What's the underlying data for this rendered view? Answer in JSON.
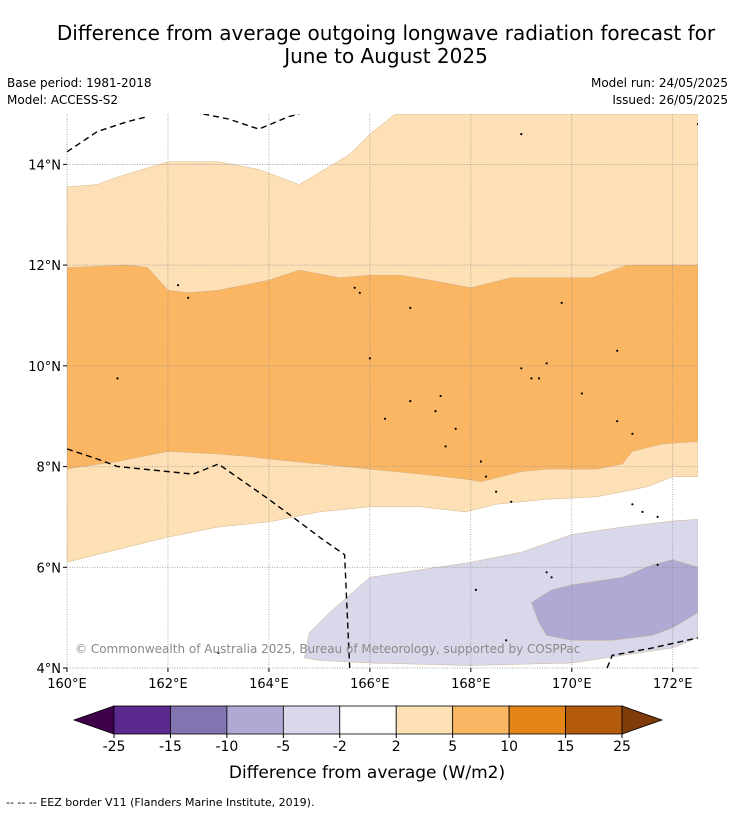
{
  "title": {
    "line1": "Difference from average outgoing longwave radiation forecast for",
    "line2": "June to August 2025"
  },
  "meta": {
    "base_period": "Base period: 1981-2018",
    "model": "Model: ACCESS-S2",
    "model_run": "Model run: 24/05/2025",
    "issued": "Issued: 26/05/2025"
  },
  "map": {
    "lon_range": [
      160,
      172.5
    ],
    "lat_range": [
      4,
      15
    ],
    "lon_ticks": [
      {
        "value": 160,
        "label": "160°E"
      },
      {
        "value": 162,
        "label": "162°E"
      },
      {
        "value": 164,
        "label": "164°E"
      },
      {
        "value": 166,
        "label": "166°E"
      },
      {
        "value": 168,
        "label": "168°E"
      },
      {
        "value": 170,
        "label": "170°E"
      },
      {
        "value": 172,
        "label": "172°E"
      }
    ],
    "lat_ticks": [
      {
        "value": 4,
        "label": "4°N"
      },
      {
        "value": 6,
        "label": "6°N"
      },
      {
        "value": 8,
        "label": "8°N"
      },
      {
        "value": 10,
        "label": "10°N"
      },
      {
        "value": 12,
        "label": "12°N"
      },
      {
        "value": 14,
        "label": "14°N"
      }
    ],
    "gridlines": true,
    "copyright": "© Commonwealth of Australia 2025, Bureau of Meteorology, supported by COSPPac",
    "regions": [
      {
        "category": "2 to 5",
        "color": "#fde0b5",
        "lonlat": [
          [
            160,
            13.55
          ],
          [
            160.6,
            13.6
          ],
          [
            161,
            13.75
          ],
          [
            162,
            14.05
          ],
          [
            163,
            14.05
          ],
          [
            163.8,
            13.9
          ],
          [
            164.6,
            13.6
          ],
          [
            165.6,
            14.2
          ],
          [
            166,
            14.6
          ],
          [
            166.5,
            15
          ],
          [
            172.5,
            15
          ],
          [
            172.5,
            7.8
          ],
          [
            172,
            7.8
          ],
          [
            171.5,
            7.6
          ],
          [
            170.5,
            7.4
          ],
          [
            169.5,
            7.35
          ],
          [
            168.5,
            7.25
          ],
          [
            167.9,
            7.1
          ],
          [
            167,
            7.2
          ],
          [
            166,
            7.2
          ],
          [
            165,
            7.1
          ],
          [
            164.5,
            7.0
          ],
          [
            164,
            6.9
          ],
          [
            163,
            6.8
          ],
          [
            162,
            6.6
          ],
          [
            161,
            6.35
          ],
          [
            160,
            6.1
          ]
        ]
      },
      {
        "category": "5 to 10",
        "color": "#fbb664",
        "lonlat": [
          [
            160,
            11.95
          ],
          [
            161.2,
            12.0
          ],
          [
            161.6,
            11.95
          ],
          [
            162,
            11.5
          ],
          [
            162.4,
            11.45
          ],
          [
            163,
            11.5
          ],
          [
            164,
            11.7
          ],
          [
            164.6,
            11.9
          ],
          [
            165.4,
            11.75
          ],
          [
            166,
            11.8
          ],
          [
            166.6,
            11.8
          ],
          [
            167.2,
            11.7
          ],
          [
            168,
            11.55
          ],
          [
            168.8,
            11.75
          ],
          [
            169.5,
            11.75
          ],
          [
            170.4,
            11.75
          ],
          [
            171.1,
            12.0
          ],
          [
            172.5,
            12.0
          ],
          [
            172.5,
            8.5
          ],
          [
            171.8,
            8.45
          ],
          [
            171.2,
            8.3
          ],
          [
            171.0,
            8.05
          ],
          [
            170.5,
            7.95
          ],
          [
            169.5,
            7.95
          ],
          [
            169.0,
            7.9
          ],
          [
            168.2,
            7.7
          ],
          [
            167.9,
            7.75
          ],
          [
            167,
            7.85
          ],
          [
            166,
            7.95
          ],
          [
            165.5,
            8.0
          ],
          [
            165,
            8.05
          ],
          [
            164,
            8.15
          ],
          [
            163.6,
            8.2
          ],
          [
            163,
            8.25
          ],
          [
            162,
            8.3
          ],
          [
            161,
            8.1
          ],
          [
            160.3,
            8.0
          ],
          [
            160,
            7.95
          ]
        ]
      },
      {
        "category": "-5 to -2",
        "color": "#d8d8ea",
        "lonlat": [
          [
            164.7,
            4.2
          ],
          [
            164.8,
            4.7
          ],
          [
            165.2,
            5.1
          ],
          [
            166,
            5.8
          ],
          [
            167,
            5.95
          ],
          [
            168,
            6.1
          ],
          [
            169,
            6.3
          ],
          [
            170,
            6.65
          ],
          [
            171,
            6.8
          ],
          [
            172,
            6.92
          ],
          [
            172.5,
            6.95
          ],
          [
            172.5,
            4.6
          ],
          [
            172,
            4.4
          ],
          [
            171,
            4.25
          ],
          [
            170,
            4.1
          ],
          [
            168,
            4.05
          ],
          [
            166,
            4.1
          ],
          [
            165,
            4.15
          ]
        ]
      },
      {
        "category": "-10 to -5",
        "color": "#b0a9d3",
        "lonlat": [
          [
            169.2,
            5.3
          ],
          [
            169.6,
            5.55
          ],
          [
            170,
            5.65
          ],
          [
            171,
            5.8
          ],
          [
            171.6,
            6.05
          ],
          [
            172,
            6.15
          ],
          [
            172.5,
            6.0
          ],
          [
            172.5,
            5.1
          ],
          [
            172,
            4.8
          ],
          [
            171.6,
            4.65
          ],
          [
            170.8,
            4.55
          ],
          [
            170,
            4.55
          ],
          [
            169.5,
            4.65
          ],
          [
            169.35,
            4.9
          ]
        ]
      }
    ],
    "eez_lines": [
      [
        [
          160,
          8.35
        ],
        [
          160.6,
          8.15
        ],
        [
          161.0,
          8.0
        ],
        [
          162.5,
          7.85
        ],
        [
          163.0,
          8.05
        ],
        [
          163.5,
          7.7
        ],
        [
          164.0,
          7.35
        ],
        [
          164.6,
          6.9
        ],
        [
          165.0,
          6.6
        ],
        [
          165.5,
          6.25
        ],
        [
          165.6,
          4.0
        ]
      ],
      [
        [
          160,
          14.25
        ],
        [
          160.6,
          14.65
        ],
        [
          161.2,
          14.85
        ],
        [
          161.6,
          14.95
        ]
      ],
      [
        [
          162.7,
          15.0
        ],
        [
          163.2,
          14.9
        ],
        [
          163.8,
          14.7
        ],
        [
          164.4,
          14.95
        ],
        [
          164.6,
          15.0
        ]
      ],
      [
        [
          170.7,
          4.0
        ],
        [
          170.8,
          4.25
        ],
        [
          171.6,
          4.4
        ],
        [
          172.5,
          4.6
        ]
      ]
    ],
    "islands": [
      [
        161,
        9.75
      ],
      [
        162.2,
        11.6
      ],
      [
        162.4,
        11.35
      ],
      [
        163,
        4.3
      ],
      [
        165.7,
        11.55
      ],
      [
        165.8,
        11.45
      ],
      [
        166,
        10.15
      ],
      [
        166.3,
        8.95
      ],
      [
        166.8,
        11.15
      ],
      [
        166.8,
        9.3
      ],
      [
        167.3,
        9.1
      ],
      [
        167.4,
        9.4
      ],
      [
        167.7,
        8.75
      ],
      [
        167.5,
        8.4
      ],
      [
        168.2,
        8.1
      ],
      [
        168.3,
        7.8
      ],
      [
        168.5,
        7.5
      ],
      [
        168.8,
        7.3
      ],
      [
        169.0,
        14.6
      ],
      [
        169.0,
        9.95
      ],
      [
        169.2,
        9.75
      ],
      [
        169.35,
        9.75
      ],
      [
        169.5,
        10.05
      ],
      [
        169.8,
        11.25
      ],
      [
        169.5,
        5.9
      ],
      [
        169.6,
        5.8
      ],
      [
        170.2,
        9.45
      ],
      [
        170.9,
        8.9
      ],
      [
        170.9,
        10.3
      ],
      [
        171.2,
        8.65
      ],
      [
        171.2,
        7.25
      ],
      [
        171.4,
        7.1
      ],
      [
        171.7,
        7.0
      ],
      [
        171.7,
        6.05
      ],
      [
        172.5,
        14.8
      ],
      [
        168.1,
        5.55
      ],
      [
        168.7,
        4.55
      ]
    ]
  },
  "legend": {
    "colors": [
      "#3f004b",
      "#5b2a8e",
      "#8274b0",
      "#b0a9d3",
      "#d8d8ea",
      "#ffffff",
      "#fde0b5",
      "#fbb664",
      "#e38417",
      "#b45a0b",
      "#7f3b08"
    ],
    "tick_labels": [
      "-25",
      "-15",
      "-10",
      "-5",
      "-2",
      "2",
      "5",
      "10",
      "15",
      "25"
    ],
    "label": "Difference from average (W/m2)"
  },
  "footnote": "--  --  -- EEZ border V11 (Flanders Marine Institute, 2019)."
}
